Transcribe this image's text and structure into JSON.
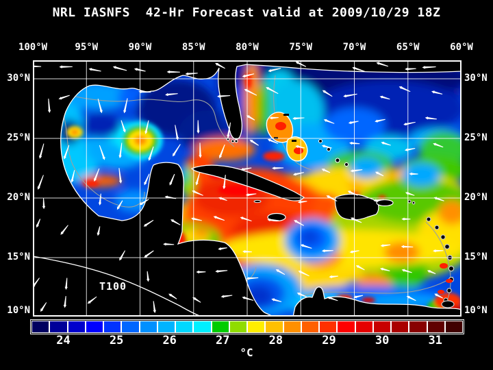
{
  "title": "NRL IASNFS  42-Hr Forecast valid at 2009/10/29 18Z",
  "map": {
    "annotation_label": "T100",
    "lon_labels": [
      "100°W",
      "95°W",
      "90°W",
      "85°W",
      "80°W",
      "75°W",
      "70°W",
      "65°W",
      "60°W"
    ],
    "lat_labels_left": [
      "30°N",
      "25°N",
      "20°N",
      "15°N",
      "10°N"
    ],
    "lat_labels_right": [
      "30°N",
      "25°N",
      "20°N",
      "15°N",
      "10°N"
    ],
    "grid_color": "#ffffff",
    "frame_color": "#ffffff",
    "land_color": "#000000",
    "coastline_color": "#ffffff",
    "bathymetry_contour_color": "#9aa0a0",
    "wind_vector_color": "#ffffff"
  },
  "colorbar": {
    "unit_label": "°C",
    "tick_labels": [
      "24",
      "25",
      "26",
      "27",
      "28",
      "29",
      "30",
      "31"
    ],
    "segment_colors": [
      "#000060",
      "#000099",
      "#0000cc",
      "#0000ff",
      "#0033ff",
      "#0066ff",
      "#0090ff",
      "#00b4ff",
      "#00d8ff",
      "#00f0ff",
      "#00cc00",
      "#90dc00",
      "#ffee00",
      "#ffc000",
      "#ff9000",
      "#ff6000",
      "#ff3000",
      "#ff0000",
      "#e60000",
      "#c80000",
      "#aa0000",
      "#880000",
      "#600000",
      "#400000"
    ]
  }
}
